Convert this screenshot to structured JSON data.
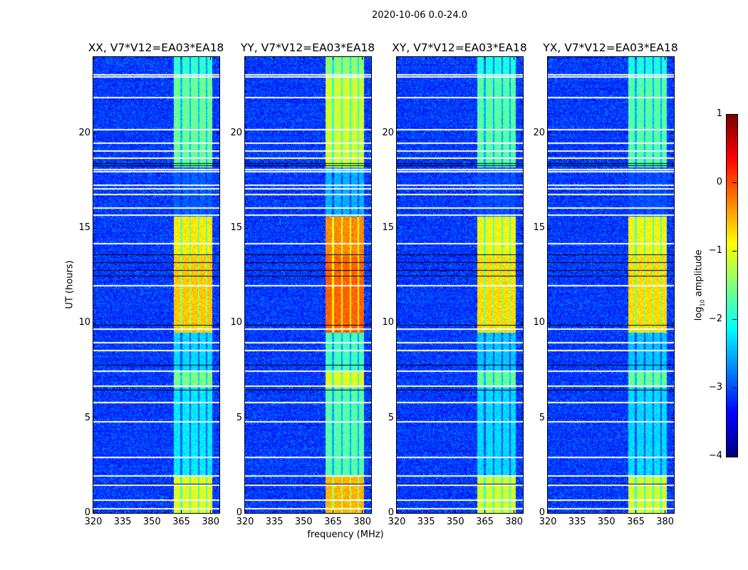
{
  "chart_data": {
    "type": "heatmap",
    "title": "2020-10-06 0.0-24.0",
    "xlabel": "frequency (MHz)",
    "ylabel": "UT (hours)",
    "xlim": [
      320,
      384.5
    ],
    "ylim": [
      0,
      24
    ],
    "xticks": [
      "320",
      "335",
      "350",
      "365",
      "380"
    ],
    "xtick_values": [
      320,
      335,
      350,
      365,
      380
    ],
    "yticks": [
      "0",
      "5",
      "10",
      "15",
      "20"
    ],
    "ytick_values": [
      0,
      5,
      10,
      15,
      20
    ],
    "colorbar": {
      "label_prefix": "log",
      "label_sub": "10",
      "label_suffix": " amplitude",
      "range": [
        -4,
        1
      ],
      "ticks": [
        "1",
        "0",
        "−1",
        "−2",
        "−3",
        "−4"
      ],
      "tick_values": [
        1,
        0,
        -1,
        -2,
        -3,
        -4
      ],
      "colormap": "jet"
    },
    "panels": [
      {
        "title": "XX, V7*V12=EA03*EA18",
        "band_boost": 1.0
      },
      {
        "title": "YY, V7*V12=EA03*EA18",
        "band_boost": 1.25
      },
      {
        "title": "XY, V7*V12=EA03*EA18",
        "band_boost": 0.95
      },
      {
        "title": "YX, V7*V12=EA03*EA18",
        "band_boost": 0.95
      }
    ],
    "background_log_amplitude": -3.1,
    "rfi_band_mhz": [
      361,
      381
    ],
    "rfi_subband_gaps_mhz": [
      365,
      369.5,
      374,
      378
    ],
    "rfi_time_segments": [
      {
        "hours": [
          0,
          1.9
        ],
        "log_amplitude": -1.0
      },
      {
        "hours": [
          1.9,
          6.6
        ],
        "log_amplitude": -2.2
      },
      {
        "hours": [
          6.6,
          7.5
        ],
        "log_amplitude": -1.5
      },
      {
        "hours": [
          7.5,
          9.5
        ],
        "log_amplitude": -2.3
      },
      {
        "hours": [
          9.5,
          13.5
        ],
        "log_amplitude": -0.6
      },
      {
        "hours": [
          13.5,
          15.6
        ],
        "log_amplitude": -0.8
      },
      {
        "hours": [
          15.6,
          18.2
        ],
        "log_amplitude": -3.0
      },
      {
        "hours": [
          18.2,
          22.9
        ],
        "log_amplitude": -1.6
      },
      {
        "hours": [
          22.9,
          24
        ],
        "log_amplitude": -1.9
      }
    ],
    "flagged_rows_hours": [
      0.25,
      0.7,
      1.5,
      2.0,
      2.95,
      4.85,
      5.85,
      6.7,
      7.5,
      8.6,
      9.0,
      9.7,
      12.0,
      14.2,
      15.7,
      16.1,
      16.8,
      17.1,
      17.3,
      18.0,
      18.1,
      18.7,
      19.1,
      19.5,
      20.2,
      21.9,
      23.0,
      23.1
    ],
    "zero_rows_hours": [
      1.55,
      6.5,
      7.8,
      9.9,
      12.5,
      12.8,
      13.2,
      13.6,
      18.3,
      18.4
    ]
  }
}
